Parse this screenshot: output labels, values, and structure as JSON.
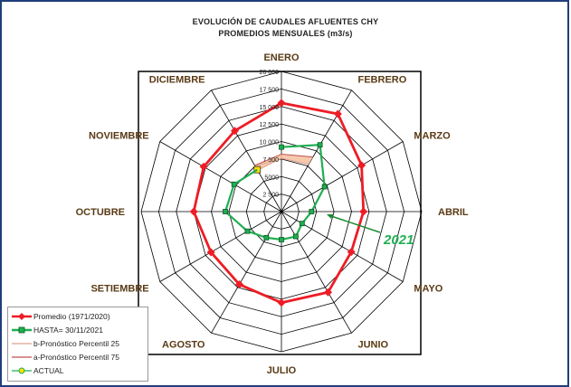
{
  "title": {
    "line1": "EVOLUCIÓN DE CAUDALES AFLUENTES CHY",
    "line2": "PROMEDIOS MENSUALES (m3/s)"
  },
  "chart_data": {
    "type": "radar",
    "categories": [
      "ENERO",
      "FEBRERO",
      "MARZO",
      "ABRIL",
      "MAYO",
      "JUNIO",
      "JULIO",
      "AGOSTO",
      "SETIEMBRE",
      "OCTUBRE",
      "NOVIEMBRE",
      "DICIEMBRE"
    ],
    "rlim": [
      0,
      20000
    ],
    "ticks": [
      2500,
      5000,
      7500,
      10000,
      12500,
      15000,
      17500,
      20000
    ],
    "tick_labels": [
      "2 500",
      "5000",
      "7 500",
      "10 000",
      "12 500",
      "15 000",
      "17 500",
      "20 000"
    ],
    "series": [
      {
        "name": "Promedio (1971/2020)",
        "color": "#ee1c25",
        "marker": "diamond",
        "values": [
          15500,
          16100,
          13200,
          11700,
          11500,
          13300,
          13000,
          12000,
          11600,
          12500,
          12800,
          13300
        ]
      },
      {
        "name": "HASTA= 30/11/2021",
        "color": "#1fae52",
        "marker": "square",
        "values": [
          9200,
          11000,
          7100,
          4300,
          3400,
          4100,
          4000,
          4300,
          5600,
          8000,
          7800,
          null
        ]
      },
      {
        "name": "b-Pronóstico Percentil 25",
        "color": "#e0a090",
        "values": [
          7600,
          7800,
          null,
          null,
          null,
          null,
          null,
          null,
          null,
          null,
          null,
          6800
        ]
      },
      {
        "name": "a-Pronóstico Percentil 75",
        "color": "#c0504d",
        "values": [
          8200,
          9000,
          null,
          null,
          null,
          null,
          null,
          null,
          null,
          null,
          null,
          7600
        ]
      },
      {
        "name": "ACTUAL",
        "color": "#ffe000",
        "marker": "circle",
        "values": [
          null,
          null,
          null,
          null,
          null,
          null,
          null,
          null,
          null,
          null,
          null,
          6900
        ]
      }
    ],
    "fill_color": "#f4c0a0",
    "annotation": "2021",
    "grid": true
  }
}
